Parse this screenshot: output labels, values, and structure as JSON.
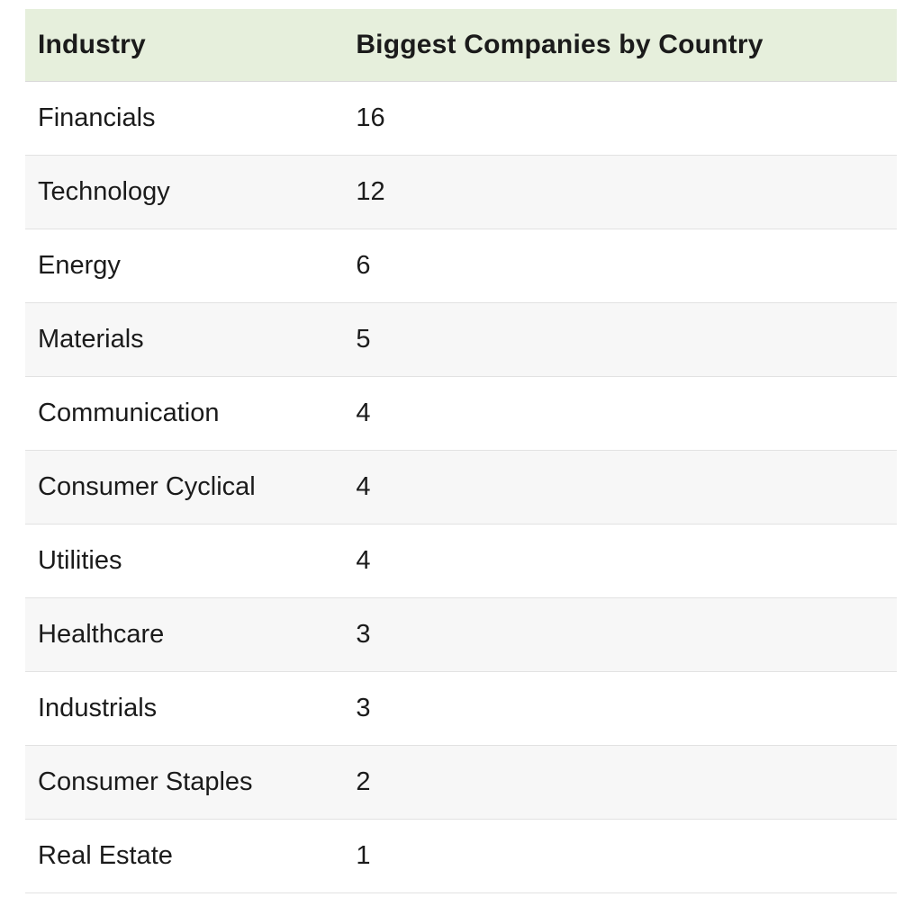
{
  "table": {
    "columns": [
      {
        "label": "Industry"
      },
      {
        "label": "Biggest Companies by Country"
      }
    ],
    "rows": [
      {
        "industry": "Financials",
        "count": "16"
      },
      {
        "industry": "Technology",
        "count": "12"
      },
      {
        "industry": "Energy",
        "count": "6"
      },
      {
        "industry": "Materials",
        "count": "5"
      },
      {
        "industry": "Communication",
        "count": "4"
      },
      {
        "industry": "Consumer Cyclical",
        "count": "4"
      },
      {
        "industry": "Utilities",
        "count": "4"
      },
      {
        "industry": "Healthcare",
        "count": "3"
      },
      {
        "industry": "Industrials",
        "count": "3"
      },
      {
        "industry": "Consumer Staples",
        "count": "2"
      },
      {
        "industry": "Real Estate",
        "count": "1"
      }
    ]
  },
  "chart_data": {
    "type": "table",
    "title": "",
    "columns": [
      "Industry",
      "Biggest Companies by Country"
    ],
    "categories": [
      "Financials",
      "Technology",
      "Energy",
      "Materials",
      "Communication",
      "Consumer Cyclical",
      "Utilities",
      "Healthcare",
      "Industrials",
      "Consumer Staples",
      "Real Estate"
    ],
    "values": [
      16,
      12,
      6,
      5,
      4,
      4,
      4,
      3,
      3,
      2,
      1
    ],
    "layout_hints": {
      "header_background": "#e6efdc",
      "zebra_striping": true,
      "alt_row_background": "#f7f7f7",
      "row_border_color": "#e2e2e2"
    }
  },
  "colors": {
    "header_bg": "#e6efdc",
    "row_alt_bg": "#f7f7f7",
    "border": "#e2e2e2",
    "text": "#1b1b1b"
  }
}
